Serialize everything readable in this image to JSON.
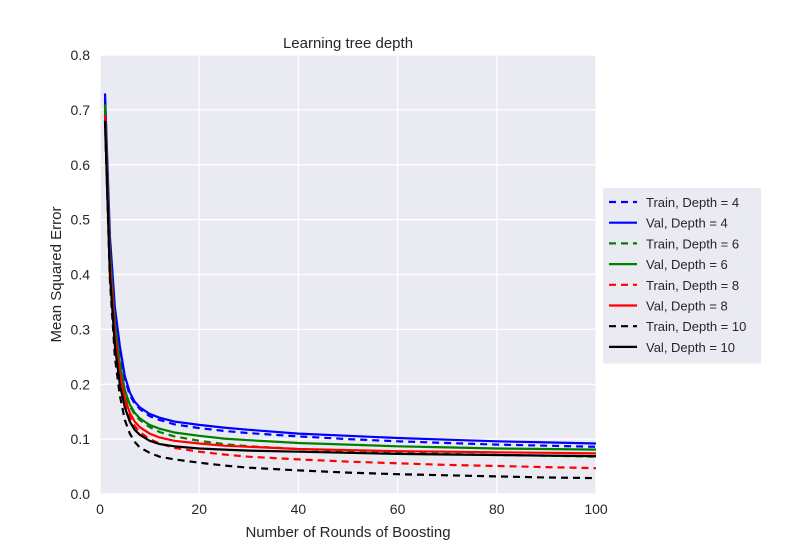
{
  "chart_data": {
    "type": "line",
    "title": "Learning tree depth",
    "xlabel": "Number of Rounds of Boosting",
    "ylabel": "Mean Squared Error",
    "xlim": [
      0,
      100
    ],
    "ylim": [
      0.0,
      0.8
    ],
    "xticks": [
      0,
      20,
      40,
      60,
      80,
      100
    ],
    "yticks": [
      0.0,
      0.1,
      0.2,
      0.3,
      0.4,
      0.5,
      0.6,
      0.7,
      0.8
    ],
    "xtick_labels": [
      "0",
      "20",
      "40",
      "60",
      "80",
      "100"
    ],
    "ytick_labels": [
      "0.0",
      "0.1",
      "0.2",
      "0.3",
      "0.4",
      "0.5",
      "0.6",
      "0.7",
      "0.8"
    ],
    "grid": true,
    "legend_position": "outside-right",
    "x": [
      1,
      2,
      3,
      4,
      5,
      6,
      7,
      8,
      10,
      12,
      15,
      20,
      25,
      30,
      40,
      50,
      60,
      70,
      80,
      90,
      100
    ],
    "series": [
      {
        "name": "Train, Depth = 4",
        "color": "#0000ff",
        "dash": "dashed",
        "values": [
          0.72,
          0.46,
          0.33,
          0.26,
          0.21,
          0.18,
          0.165,
          0.155,
          0.142,
          0.135,
          0.127,
          0.12,
          0.115,
          0.111,
          0.105,
          0.1,
          0.096,
          0.093,
          0.09,
          0.088,
          0.086
        ]
      },
      {
        "name": "Val, Depth = 4",
        "color": "#0000ff",
        "dash": "solid",
        "values": [
          0.73,
          0.47,
          0.34,
          0.27,
          0.215,
          0.185,
          0.168,
          0.158,
          0.146,
          0.139,
          0.132,
          0.126,
          0.121,
          0.117,
          0.11,
          0.106,
          0.102,
          0.099,
          0.096,
          0.094,
          0.092
        ]
      },
      {
        "name": "Train, Depth = 6",
        "color": "#008000",
        "dash": "dashed",
        "values": [
          0.7,
          0.43,
          0.3,
          0.23,
          0.185,
          0.16,
          0.145,
          0.135,
          0.122,
          0.113,
          0.105,
          0.097,
          0.091,
          0.087,
          0.082,
          0.078,
          0.075,
          0.073,
          0.071,
          0.07,
          0.068
        ]
      },
      {
        "name": "Val, Depth = 6",
        "color": "#008000",
        "dash": "solid",
        "values": [
          0.71,
          0.44,
          0.31,
          0.24,
          0.19,
          0.163,
          0.148,
          0.138,
          0.126,
          0.119,
          0.112,
          0.106,
          0.101,
          0.098,
          0.093,
          0.09,
          0.087,
          0.085,
          0.083,
          0.082,
          0.081
        ]
      },
      {
        "name": "Train, Depth = 8",
        "color": "#ff0000",
        "dash": "dashed",
        "values": [
          0.69,
          0.41,
          0.28,
          0.21,
          0.168,
          0.14,
          0.124,
          0.113,
          0.1,
          0.092,
          0.084,
          0.077,
          0.072,
          0.068,
          0.063,
          0.059,
          0.056,
          0.053,
          0.051,
          0.049,
          0.047
        ]
      },
      {
        "name": "Val, Depth = 8",
        "color": "#ff0000",
        "dash": "solid",
        "values": [
          0.69,
          0.42,
          0.29,
          0.22,
          0.175,
          0.148,
          0.132,
          0.122,
          0.11,
          0.103,
          0.097,
          0.092,
          0.088,
          0.086,
          0.082,
          0.08,
          0.078,
          0.077,
          0.076,
          0.075,
          0.074
        ]
      },
      {
        "name": "Train, Depth = 10",
        "color": "#000000",
        "dash": "dashed",
        "values": [
          0.68,
          0.39,
          0.25,
          0.18,
          0.135,
          0.11,
          0.095,
          0.085,
          0.075,
          0.068,
          0.063,
          0.057,
          0.052,
          0.048,
          0.043,
          0.039,
          0.036,
          0.034,
          0.032,
          0.03,
          0.029
        ]
      },
      {
        "name": "Val, Depth = 10",
        "color": "#000000",
        "dash": "solid",
        "values": [
          0.68,
          0.4,
          0.27,
          0.2,
          0.158,
          0.132,
          0.117,
          0.108,
          0.097,
          0.091,
          0.087,
          0.083,
          0.081,
          0.079,
          0.077,
          0.075,
          0.073,
          0.072,
          0.071,
          0.07,
          0.069
        ]
      }
    ]
  }
}
